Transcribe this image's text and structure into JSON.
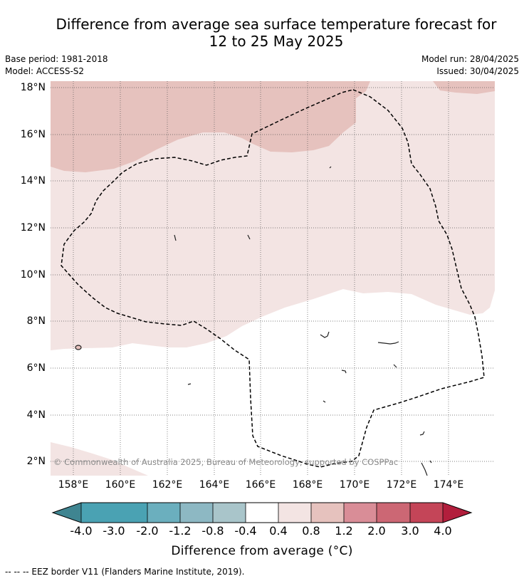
{
  "title_line1": "Difference from average sea surface temperature forecast for",
  "title_line2": "12 to 25 May 2025",
  "base_period": "Base period: 1981-2018",
  "model": "Model: ACCESS-S2",
  "model_run": "Model run: 28/04/2025",
  "issued": "Issued: 30/04/2025",
  "attribution": "© Commonwealth of Australia 2025, Bureau of Meteorology, supported by COSPPac",
  "lat_labels": [
    "18°N",
    "16°N",
    "14°N",
    "12°N",
    "10°N",
    "8°N",
    "6°N",
    "4°N",
    "2°N"
  ],
  "lon_labels": [
    "158°E",
    "160°E",
    "162°E",
    "164°E",
    "166°E",
    "168°E",
    "170°E",
    "172°E",
    "174°E"
  ],
  "colorbar": {
    "ticks": [
      "-4.0",
      "-3.0",
      "-2.0",
      "-1.2",
      "-0.8",
      "-0.4",
      "0.4",
      "0.8",
      "1.2",
      "2.0",
      "3.0",
      "4.0"
    ],
    "colors": [
      "#3f8591",
      "#4aa2b3",
      "#6bafbe",
      "#8db8c3",
      "#a9c5ca",
      "#d2d7d7",
      "#ffffff",
      "#f3e4e3",
      "#e6c2be",
      "#d98d97",
      "#cc6774",
      "#c44558",
      "#b21e3c"
    ],
    "label": "Difference from average (°C)"
  },
  "legend_footnote": "--  --  -- EEZ border V11 (Flanders Marine Institute, 2019)."
}
